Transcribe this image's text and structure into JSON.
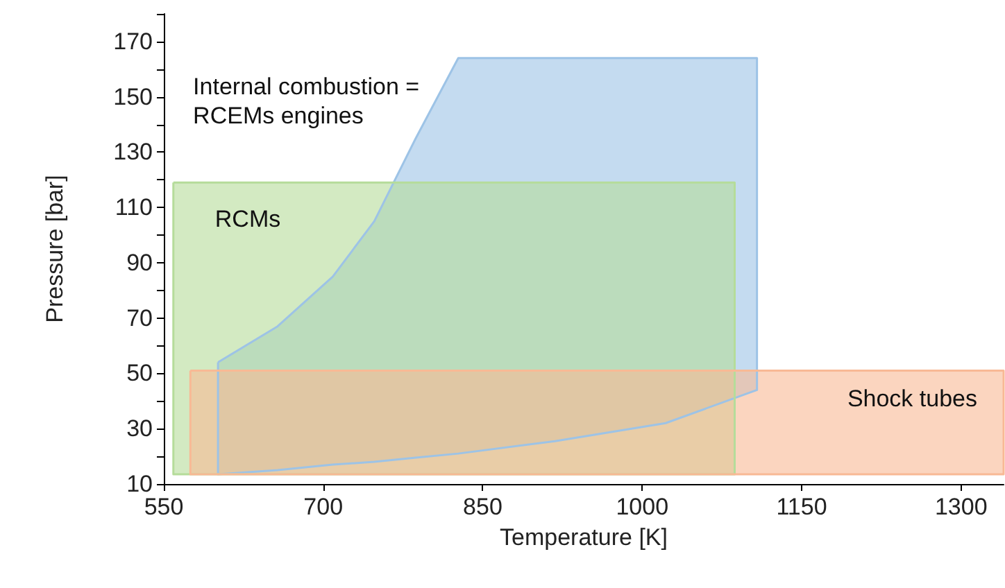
{
  "chart_data": {
    "type": "area",
    "xlabel": "Temperature [K]",
    "ylabel": "Pressure [bar]",
    "xlim": [
      550,
      1340
    ],
    "xticks": [
      550,
      700,
      850,
      1000,
      1150,
      1300
    ],
    "ylim": [
      10,
      180
    ],
    "yticks": [
      10,
      {
        "value": 20,
        "label": null
      },
      30,
      {
        "value": 40,
        "label": null
      },
      50,
      {
        "value": 60,
        "label": null
      },
      70,
      {
        "value": 80,
        "label": null
      },
      90,
      {
        "value": 100,
        "label": null
      },
      110,
      {
        "value": 120,
        "label": null
      },
      130,
      {
        "value": 140,
        "label": null
      },
      150,
      {
        "value": 160,
        "label": null
      },
      170,
      {
        "value": 180,
        "label": null
      }
    ],
    "grid": false,
    "legend": false,
    "marker": "none",
    "line_style": "solid",
    "series": [
      {
        "name": "Internal combustion = RCEMs engines",
        "color": "#9dc3e6",
        "x": [
          601,
          657,
          709,
          748,
          787,
          827,
          1108,
          1108,
          1022,
          918,
          827,
          787,
          748,
          709,
          657,
          601,
          601
        ],
        "values": [
          54,
          67,
          85,
          105,
          135,
          164,
          164,
          44,
          32,
          25.5,
          21,
          19.5,
          18,
          17,
          15,
          13.5,
          54
        ]
      },
      {
        "name": "RCMs",
        "color": "#b5dc9a",
        "x": [
          559,
          1087,
          1087,
          559,
          559
        ],
        "values": [
          119,
          119,
          13.5,
          13.5,
          119
        ]
      },
      {
        "name": "Shock tubes",
        "color": "#f8b995",
        "x": [
          575,
          1340,
          1340,
          575,
          575
        ],
        "values": [
          51,
          51,
          13.5,
          13.5,
          51
        ]
      }
    ]
  }
}
